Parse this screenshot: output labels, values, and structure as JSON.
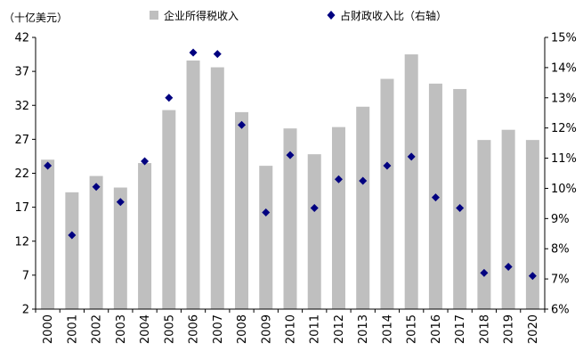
{
  "chart_data": {
    "type": "bar",
    "unit_label": "（十亿美元）",
    "categories": [
      "2000",
      "2001",
      "2002",
      "2003",
      "2004",
      "2005",
      "2006",
      "2007",
      "2008",
      "2009",
      "2010",
      "2011",
      "2012",
      "2013",
      "2014",
      "2015",
      "2016",
      "2017",
      "2018",
      "2019",
      "2020"
    ],
    "series": [
      {
        "name": "企业所得税收入",
        "type": "bar",
        "axis": "left",
        "color": "#bfbfbf",
        "values": [
          24.0,
          19.2,
          21.6,
          19.9,
          23.5,
          31.3,
          38.6,
          37.6,
          31.0,
          23.1,
          28.6,
          24.8,
          28.8,
          31.8,
          35.9,
          39.5,
          35.2,
          34.4,
          26.9,
          28.4,
          26.9
        ]
      },
      {
        "name": "占财政收入比（右轴）",
        "type": "scatter",
        "axis": "right",
        "color": "#000080",
        "values": [
          10.75,
          8.45,
          10.05,
          9.55,
          10.9,
          13.0,
          14.5,
          14.45,
          12.1,
          9.2,
          11.1,
          9.35,
          10.3,
          10.25,
          10.75,
          11.05,
          9.7,
          9.35,
          7.2,
          7.4,
          7.1
        ]
      }
    ],
    "y_left": {
      "min": 2,
      "max": 42,
      "ticks": [
        "2",
        "7",
        "12",
        "17",
        "22",
        "27",
        "32",
        "37",
        "42"
      ]
    },
    "y_right": {
      "min": 6,
      "max": 15,
      "ticks": [
        "6%",
        "7%",
        "8%",
        "9%",
        "10%",
        "11%",
        "12%",
        "13%",
        "14%",
        "15%"
      ]
    },
    "grid": false,
    "legend": "top"
  }
}
